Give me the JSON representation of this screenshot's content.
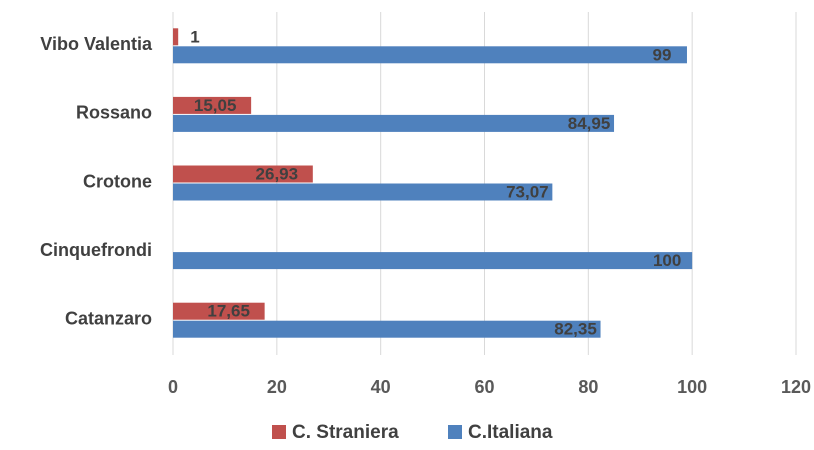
{
  "chart_data": {
    "type": "bar",
    "orientation": "horizontal",
    "categories": [
      "Vibo Valentia",
      "Rossano",
      "Crotone",
      "Cinquefrondi",
      "Catanzaro"
    ],
    "series": [
      {
        "name": "C. Straniera",
        "color": "#c0504d",
        "values": [
          1,
          15.05,
          26.93,
          null,
          17.65
        ],
        "value_labels": [
          "1",
          "15,05",
          "26,93",
          "",
          "17,65"
        ]
      },
      {
        "name": "C.Italiana",
        "color": "#4f81bd",
        "values": [
          99,
          84.95,
          73.07,
          100,
          82.35
        ],
        "value_labels": [
          "99",
          "84,95",
          "73,07",
          "100",
          "82,35"
        ]
      }
    ],
    "xlim": [
      0,
      120
    ],
    "x_ticks": [
      "0",
      "20",
      "40",
      "60",
      "80",
      "100",
      "120"
    ],
    "grid": true,
    "legend_position": "bottom"
  }
}
